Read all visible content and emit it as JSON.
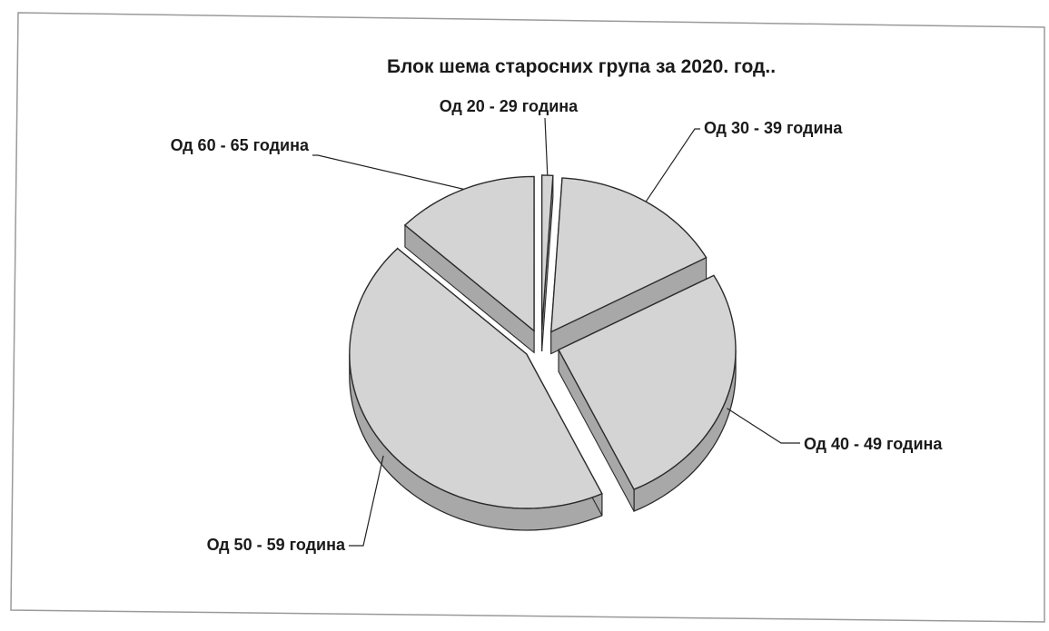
{
  "chart_data": {
    "type": "pie",
    "title": "Блок шема старосних група за 2020. год..",
    "categories": [
      "Од 20 - 29 година",
      "Од 30 - 39 година",
      "Од 40 - 49 година",
      "Од 50 - 59 година",
      "Од 60 - 65 година"
    ],
    "values": [
      1,
      16,
      26,
      44,
      13
    ],
    "exploded": true,
    "style": "3d",
    "colors": {
      "slice_top": "#d4d4d4",
      "slice_side": "#a8a8a8",
      "outline": "#2b2b2b",
      "leader": "#222222"
    }
  }
}
